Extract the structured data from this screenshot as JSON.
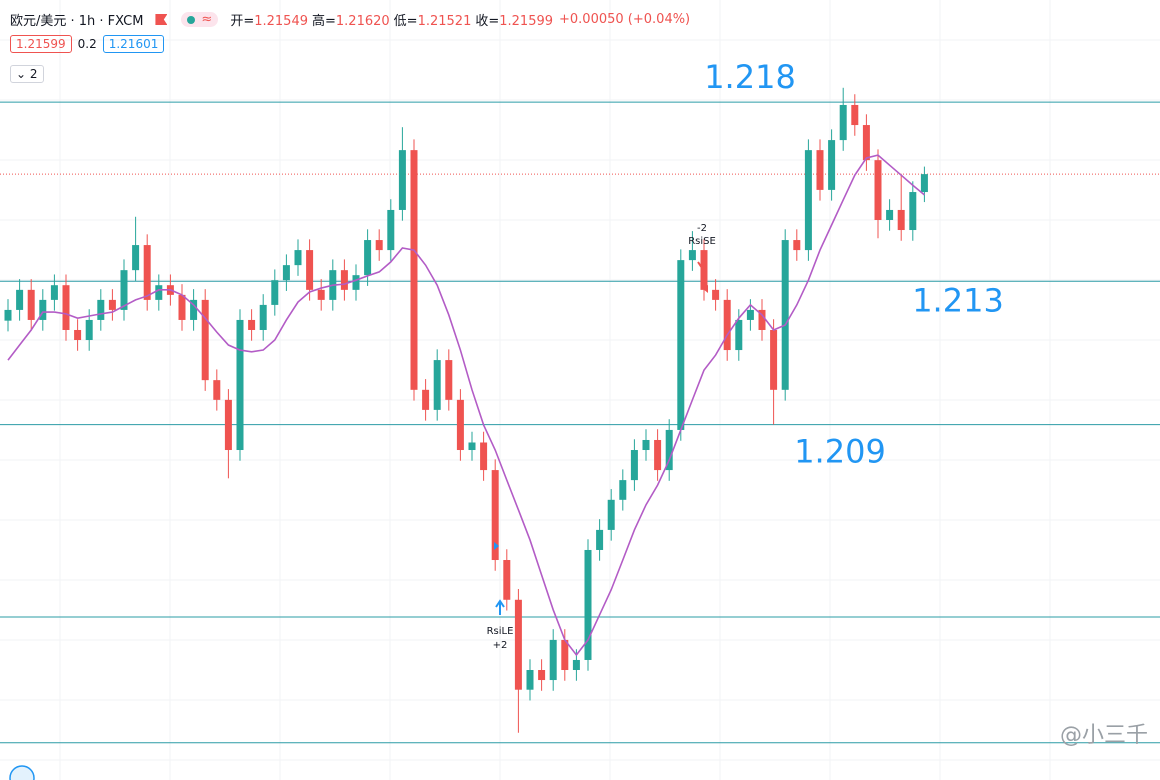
{
  "chart_data": {
    "type": "candlestick",
    "header": {
      "symbol": "欧元/美元 · 1h · FXCM",
      "ohlc": [
        {
          "label": "开=",
          "value": "1.21549"
        },
        {
          "label": "高=",
          "value": "1.21620"
        },
        {
          "label": "低=",
          "value": "1.21521"
        },
        {
          "label": "收=",
          "value": "1.21599"
        }
      ],
      "change": "+0.00050 (+0.04%)",
      "bid": "1.21599",
      "spread": "0.2",
      "ask": "1.21601",
      "indicators": "2",
      "approx": "≈"
    },
    "ylim": [
      1.19908,
      1.22085
    ],
    "up_color": "#26a69a",
    "down_color": "#ef5350",
    "ma_color": "#b35cc6",
    "level_color": "#2b9ca6",
    "label_color": "#2196f3",
    "open": [
      1.2119,
      1.2122,
      1.21276,
      1.21192,
      1.21248,
      1.21289,
      1.21164,
      1.21136,
      1.21192,
      1.21248,
      1.2122,
      1.21331,
      1.21401,
      1.21248,
      1.21289,
      1.21262,
      1.21192,
      1.21248,
      1.21024,
      1.20969,
      1.20829,
      1.21192,
      1.21164,
      1.21234,
      1.21303,
      1.21345,
      1.21387,
      1.21276,
      1.21248,
      1.21331,
      1.21276,
      1.21317,
      1.21415,
      1.21387,
      1.21499,
      1.21666,
      1.20997,
      1.20941,
      1.2108,
      1.20969,
      1.20829,
      1.2085,
      1.20773,
      1.20522,
      1.20411,
      1.2016,
      1.20215,
      1.20187,
      1.20299,
      1.20215,
      1.20243,
      1.2055,
      1.20606,
      1.2069,
      1.20745,
      1.20829,
      1.20857,
      1.20773,
      1.20885,
      1.21359,
      1.21387,
      1.21276,
      1.21248,
      1.21108,
      1.21192,
      1.2122,
      1.21164,
      1.20997,
      1.21415,
      1.21387,
      1.21666,
      1.21555,
      1.21694,
      1.21792,
      1.21736,
      1.21638,
      1.21471,
      1.21499,
      1.21443,
      1.21549
    ],
    "high": [
      1.2125,
      1.21306,
      1.21306,
      1.21278,
      1.21319,
      1.21319,
      1.21194,
      1.21222,
      1.21278,
      1.21278,
      1.21361,
      1.2148,
      1.21431,
      1.21319,
      1.21319,
      1.21292,
      1.21278,
      1.21278,
      1.21054,
      1.20999,
      1.21222,
      1.21222,
      1.21264,
      1.21333,
      1.21375,
      1.21417,
      1.21417,
      1.21306,
      1.21361,
      1.21361,
      1.21347,
      1.21445,
      1.21445,
      1.21529,
      1.2173,
      1.21696,
      1.21027,
      1.2111,
      1.2111,
      1.20999,
      1.2088,
      1.2088,
      1.20803,
      1.20552,
      1.20441,
      1.20245,
      1.20245,
      1.20329,
      1.20329,
      1.20273,
      1.2058,
      1.20636,
      1.2072,
      1.20775,
      1.20859,
      1.20887,
      1.20887,
      1.20915,
      1.21389,
      1.2144,
      1.21417,
      1.21306,
      1.21278,
      1.21222,
      1.2125,
      1.2125,
      1.21194,
      1.21445,
      1.21445,
      1.21696,
      1.21696,
      1.21724,
      1.2184,
      1.21822,
      1.21766,
      1.21668,
      1.21529,
      1.216,
      1.21579,
      1.2162
    ],
    "low": [
      1.2116,
      1.2119,
      1.21162,
      1.21162,
      1.21218,
      1.21134,
      1.21106,
      1.21106,
      1.21162,
      1.2119,
      1.2119,
      1.21301,
      1.21218,
      1.21218,
      1.21232,
      1.21162,
      1.21162,
      1.20994,
      1.20939,
      1.2075,
      1.20799,
      1.21134,
      1.21134,
      1.21204,
      1.21273,
      1.21315,
      1.21246,
      1.21218,
      1.21218,
      1.21246,
      1.21246,
      1.21287,
      1.21357,
      1.21357,
      1.21469,
      1.20967,
      1.20911,
      1.20911,
      1.20939,
      1.20799,
      1.20799,
      1.20743,
      1.20492,
      1.20381,
      1.2004,
      1.2013,
      1.20157,
      1.20157,
      1.20185,
      1.20185,
      1.20213,
      1.2052,
      1.20576,
      1.2066,
      1.20715,
      1.20799,
      1.20743,
      1.20743,
      1.20855,
      1.21329,
      1.21246,
      1.21218,
      1.21078,
      1.21078,
      1.21162,
      1.21134,
      1.209,
      1.20967,
      1.21357,
      1.21357,
      1.21525,
      1.21525,
      1.21664,
      1.21706,
      1.21608,
      1.2142,
      1.21441,
      1.21413,
      1.21413,
      1.21521
    ],
    "close": [
      1.2122,
      1.21276,
      1.21192,
      1.21248,
      1.21289,
      1.21164,
      1.21136,
      1.21192,
      1.21248,
      1.2122,
      1.21331,
      1.21401,
      1.21248,
      1.21289,
      1.21262,
      1.21192,
      1.21248,
      1.21024,
      1.20969,
      1.20829,
      1.21192,
      1.21164,
      1.21234,
      1.21303,
      1.21345,
      1.21387,
      1.21276,
      1.21248,
      1.21331,
      1.21276,
      1.21317,
      1.21415,
      1.21387,
      1.21499,
      1.21666,
      1.20997,
      1.20941,
      1.2108,
      1.20969,
      1.20829,
      1.2085,
      1.20773,
      1.20522,
      1.20411,
      1.2016,
      1.20215,
      1.20187,
      1.20299,
      1.20215,
      1.20243,
      1.2055,
      1.20606,
      1.2069,
      1.20745,
      1.20829,
      1.20857,
      1.20773,
      1.20885,
      1.21359,
      1.21387,
      1.21276,
      1.21248,
      1.21108,
      1.21192,
      1.2122,
      1.21164,
      1.20997,
      1.21415,
      1.21387,
      1.21666,
      1.21555,
      1.21694,
      1.21792,
      1.21736,
      1.21638,
      1.21471,
      1.21499,
      1.21443,
      1.21549,
      1.21599
    ],
    "ma": [
      1.2108,
      1.21122,
      1.21164,
      1.21214,
      1.21214,
      1.21209,
      1.21197,
      1.21203,
      1.21209,
      1.21214,
      1.21231,
      1.21248,
      1.21259,
      1.21276,
      1.21276,
      1.21262,
      1.21234,
      1.21197,
      1.21158,
      1.21122,
      1.21108,
      1.21103,
      1.21108,
      1.21136,
      1.21192,
      1.21242,
      1.2127,
      1.21281,
      1.21289,
      1.21292,
      1.21303,
      1.21315,
      1.21326,
      1.21354,
      1.21393,
      1.21387,
      1.21345,
      1.21289,
      1.21206,
      1.21108,
      1.20997,
      1.20899,
      1.20829,
      1.20745,
      1.20662,
      1.20578,
      1.2048,
      1.20383,
      1.20299,
      1.20257,
      1.20299,
      1.20369,
      1.20439,
      1.20522,
      1.20606,
      1.20676,
      1.20731,
      1.20801,
      1.20885,
      1.20969,
      1.21052,
      1.21094,
      1.2115,
      1.21197,
      1.21234,
      1.21206,
      1.21164,
      1.21178,
      1.21234,
      1.21303,
      1.21387,
      1.21457,
      1.21527,
      1.21596,
      1.21644,
      1.21652,
      1.21624,
      1.21596,
      1.21568,
      1.21541
    ],
    "labeled_levels": [
      1.218,
      1.213,
      1.209
    ],
    "levels": [
      1.20363,
      1.20012
    ],
    "signals": {
      "short": {
        "qty": "-2",
        "name": "RsiSE"
      },
      "long": {
        "name": "RsiLE",
        "qty": "+2"
      }
    },
    "watermark": "@小三千"
  }
}
